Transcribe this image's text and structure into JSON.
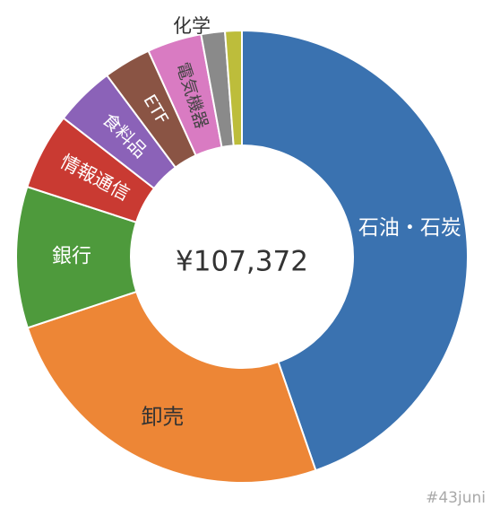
{
  "chart_data": {
    "type": "pie",
    "center_label": "¥107,372",
    "categories": [
      "石油・石炭",
      "卸売",
      "銀行",
      "情報通信",
      "食料品",
      "ETF",
      "電気機器",
      "",
      "化学"
    ],
    "values": [
      44.7,
      25.2,
      10.1,
      5.5,
      4.3,
      3.4,
      3.9,
      1.7,
      1.2
    ],
    "colors": [
      "#3a72b0",
      "#ed8636",
      "#4e9a3c",
      "#c93a32",
      "#8b62b8",
      "#8a5444",
      "#d97bc2",
      "#8a8a8a",
      "#bdbd3b"
    ],
    "label_colors": [
      "#ffffff",
      "#333333",
      "#ffffff",
      "#ffffff",
      "#ffffff",
      "#ffffff",
      "#444444",
      "#ffffff",
      "#333333"
    ]
  },
  "watermark": "#43juni"
}
